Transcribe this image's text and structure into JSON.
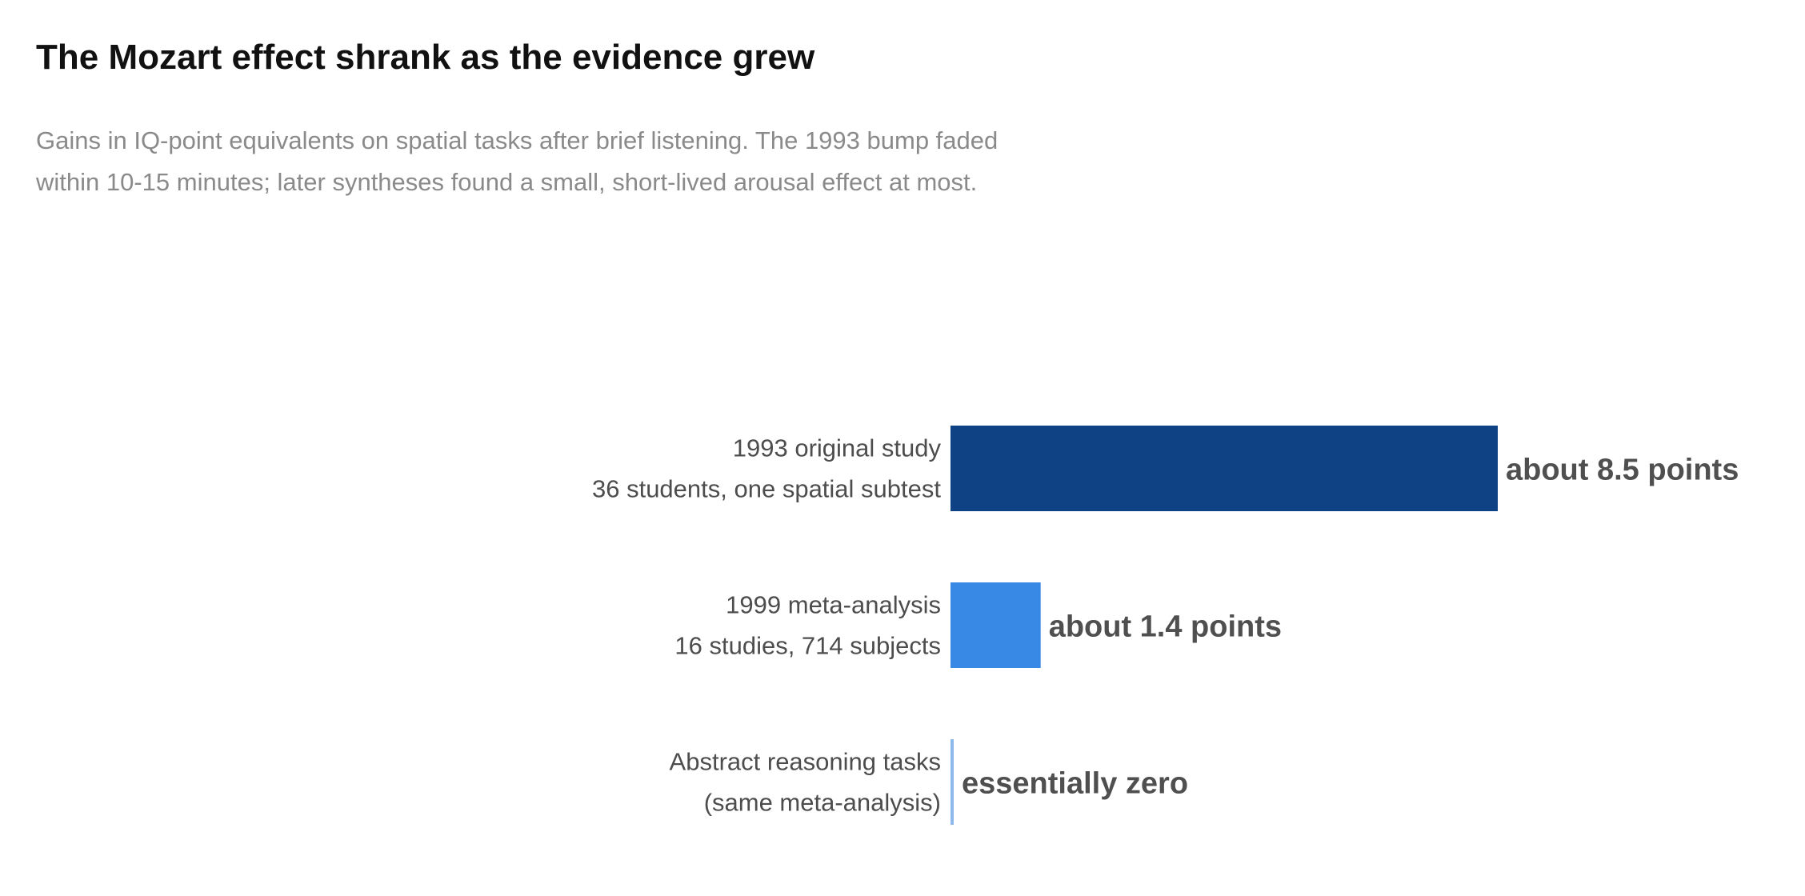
{
  "chart_data": {
    "type": "bar",
    "orientation": "horizontal",
    "title": "The Mozart effect shrank as the evidence grew",
    "subtitle_lines": [
      "Gains in IQ-point equivalents on spatial tasks after brief listening. The 1993 bump faded",
      "within 10-15 minutes; later syntheses found a small, short-lived arousal effect at most."
    ],
    "categories": [
      {
        "line1": "1993 original study",
        "line2": "36 students, one spatial subtest"
      },
      {
        "line1": "1999 meta-analysis",
        "line2": "16 studies, 714 subjects"
      },
      {
        "line1": "Abstract reasoning tasks",
        "line2": "(same meta-analysis)"
      }
    ],
    "values": [
      8.5,
      1.4,
      0
    ],
    "value_labels": [
      "about 8.5 points",
      "about 1.4 points",
      "essentially zero"
    ],
    "colors": [
      "#0f4284",
      "#3888e5",
      "#8db9ec"
    ],
    "xlabel": "",
    "ylabel": "",
    "xlim": [
      0,
      8.5
    ],
    "grid": false,
    "legend": "none"
  }
}
